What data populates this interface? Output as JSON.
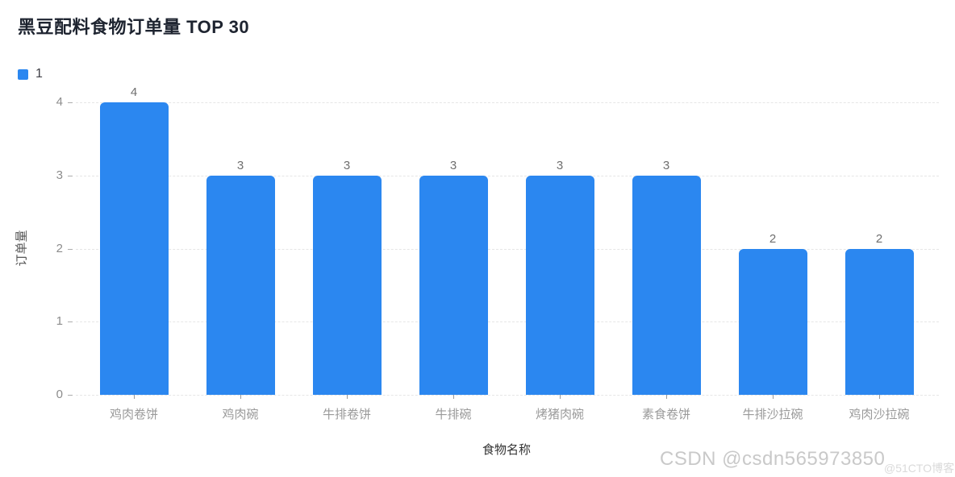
{
  "title": "黑豆配料食物订单量 TOP 30",
  "legend": {
    "label": "1",
    "color": "#2B87F0"
  },
  "watermark": {
    "primary": "CSDN @csdn565973850",
    "secondary": "@51CTO博客"
  },
  "chart_data": {
    "type": "bar",
    "title": "黑豆配料食物订单量 TOP 30",
    "series_name": "1",
    "categories": [
      "鸡肉卷饼",
      "鸡肉碗",
      "牛排卷饼",
      "牛排碗",
      "烤猪肉碗",
      "素食卷饼",
      "牛排沙拉碗",
      "鸡肉沙拉碗"
    ],
    "values": [
      4,
      3,
      3,
      3,
      3,
      3,
      2,
      2
    ],
    "xlabel": "食物名称",
    "ylabel": "订单量",
    "ylim": [
      0,
      4
    ],
    "yticks": [
      0,
      1,
      2,
      3,
      4
    ],
    "bar_color": "#2B87F0",
    "grid": "dashed-horizontal",
    "legend_position": "top-left",
    "value_labels": true
  }
}
